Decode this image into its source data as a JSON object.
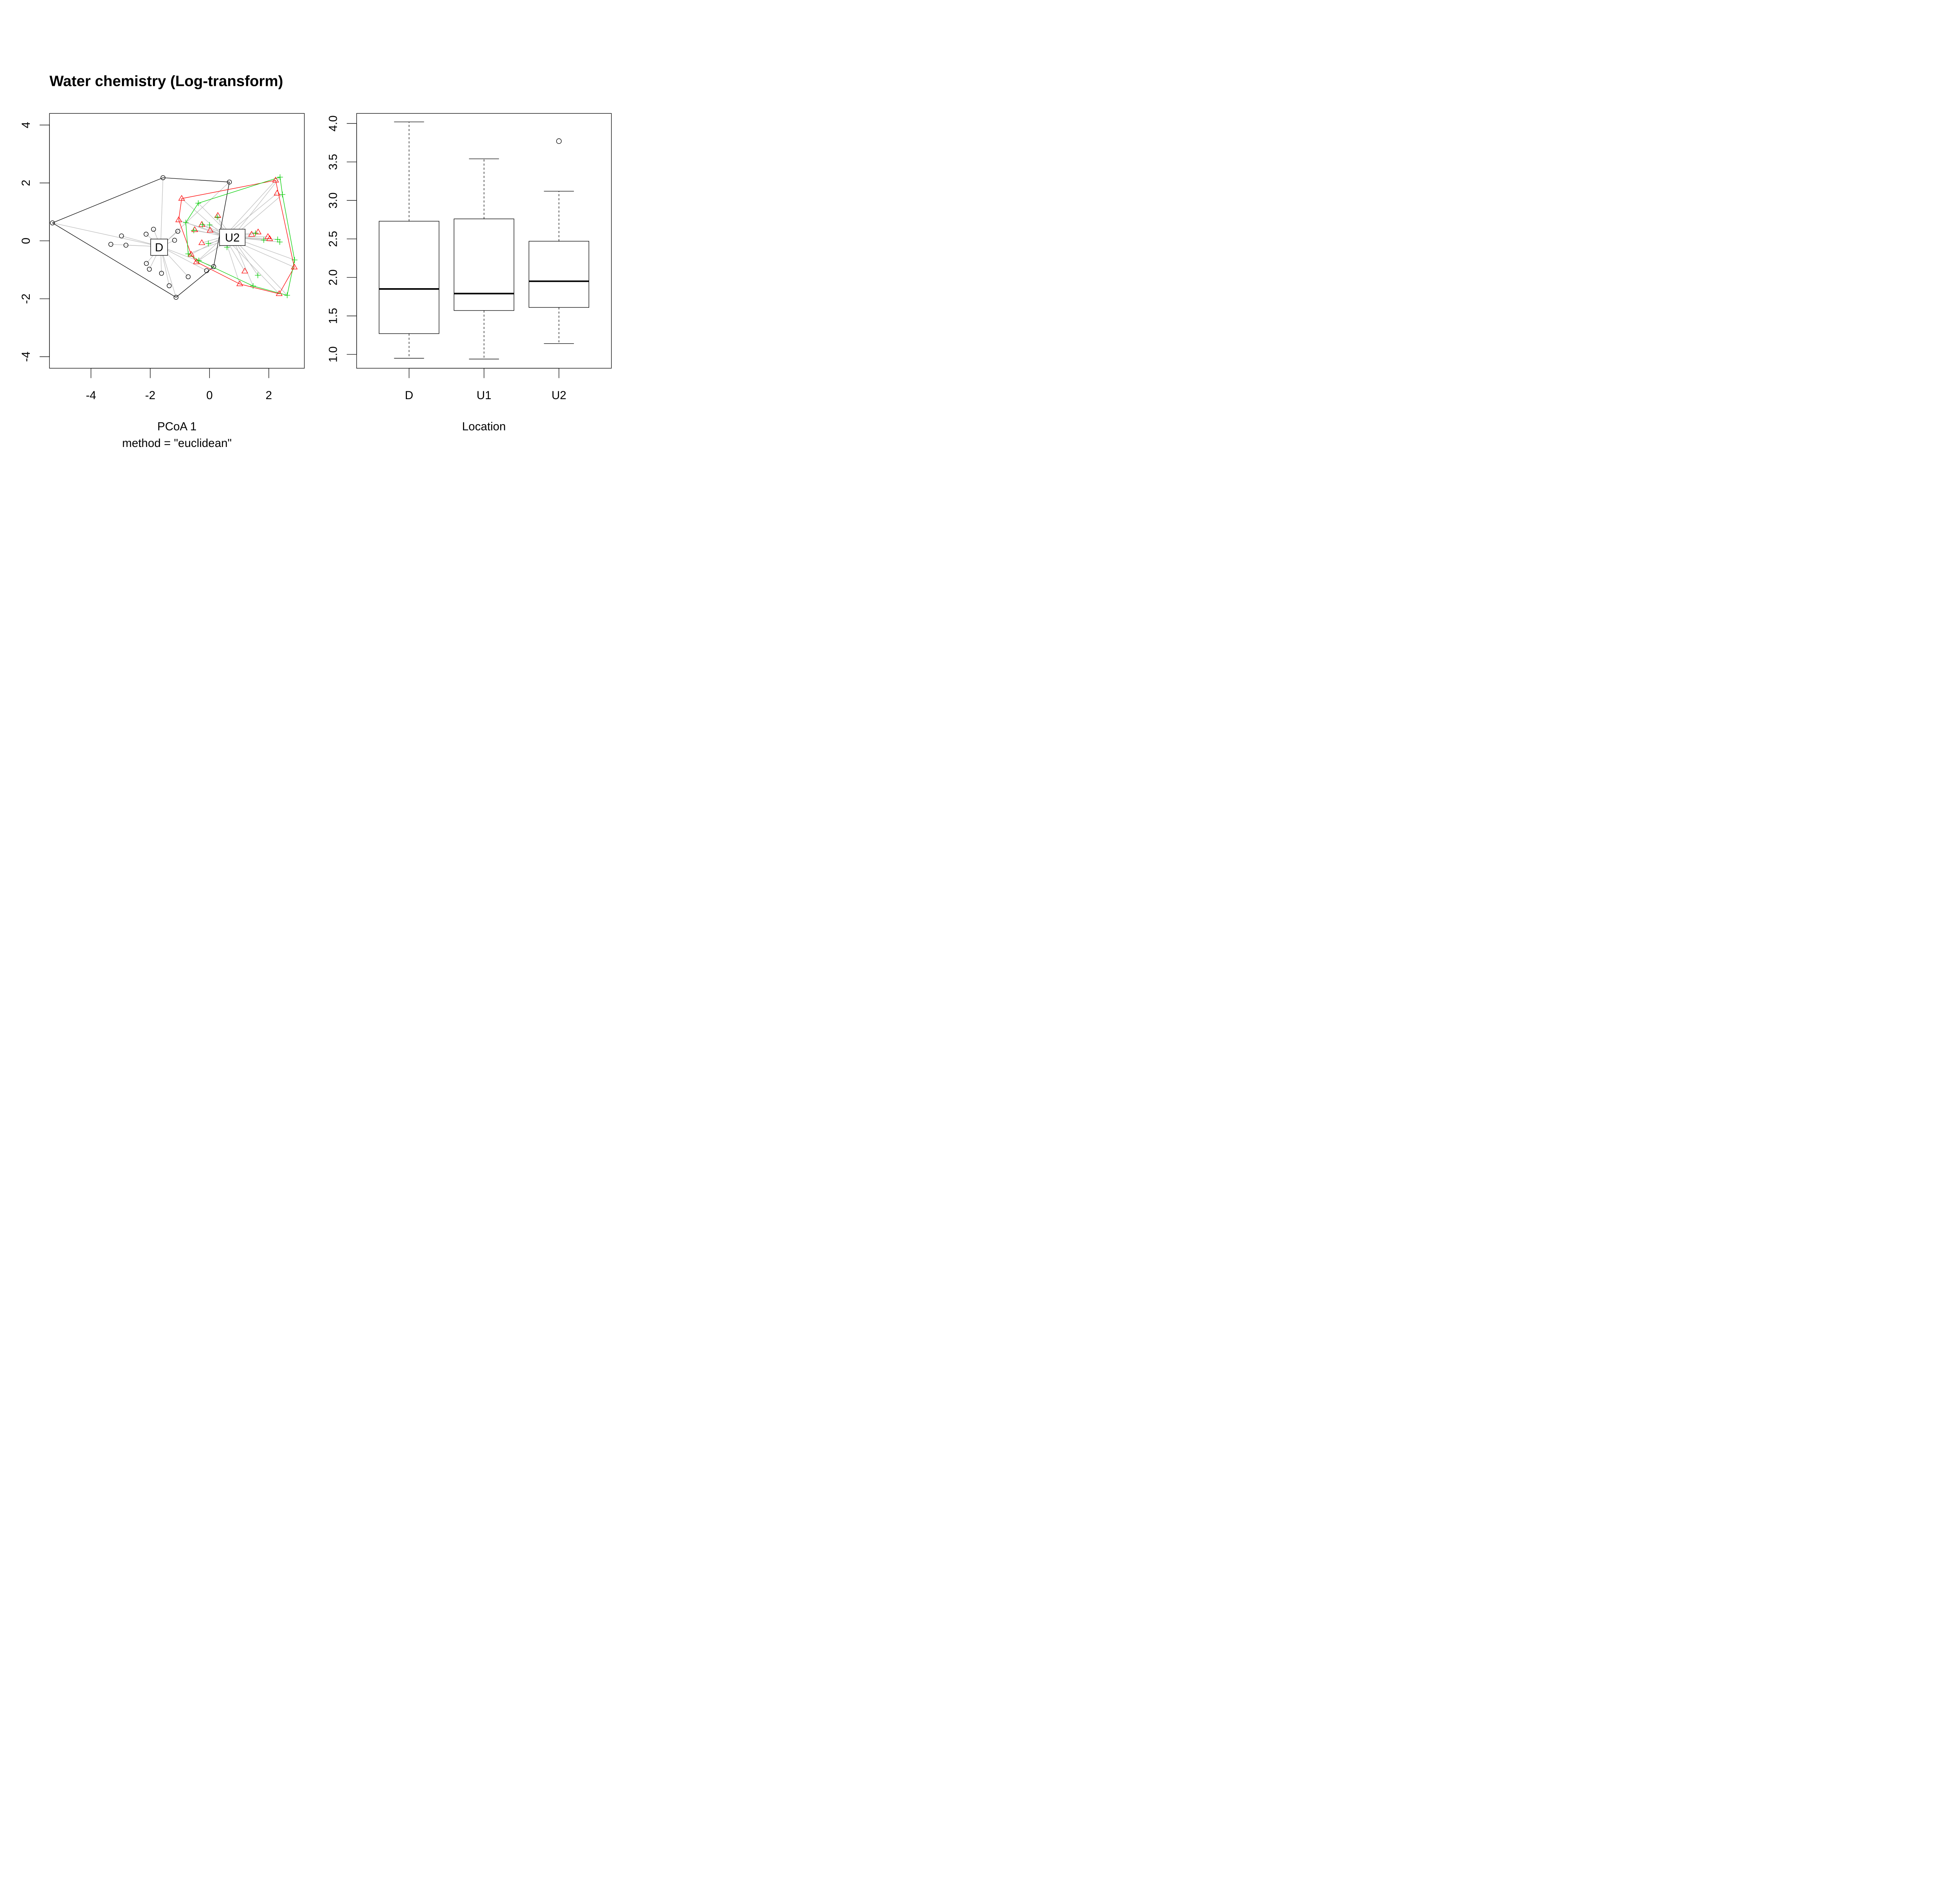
{
  "chart_data": [
    {
      "type": "scatter",
      "title": "Water chemistry (Log-transform)",
      "xlabel": "PCoA 1",
      "xlabel_sub": "method = \"euclidean\"",
      "ylabel": "",
      "xlim": [
        -5.4,
        3.2
      ],
      "ylim": [
        -4.4,
        4.4
      ],
      "xticks": [
        -4,
        -2,
        0,
        2
      ],
      "xtick_labels": [
        "-4",
        "-2",
        "0",
        "2"
      ],
      "yticks": [
        -4,
        -2,
        0,
        2,
        4
      ],
      "ytick_labels": [
        "-4",
        "-2",
        "0",
        "2",
        "4"
      ],
      "colors": {
        "D": "#000000",
        "U1": "#ff0000",
        "U2": "#00cd00",
        "spider": "#bebebe"
      },
      "centroid_labels": [
        "D",
        "U2"
      ],
      "groups": [
        {
          "name": "D",
          "marker": "circle",
          "color": "#000000",
          "centroid": [
            -1.65,
            -0.2
          ],
          "label_pos": [
            -1.7,
            -0.22
          ],
          "points": [
            [
              -5.3,
              0.62
            ],
            [
              -1.57,
              2.18
            ],
            [
              0.67,
              2.03
            ],
            [
              -1.13,
              -1.95
            ],
            [
              0.14,
              -0.89
            ],
            [
              -3.33,
              -0.12
            ],
            [
              -2.97,
              0.17
            ],
            [
              -2.82,
              -0.15
            ],
            [
              -2.14,
              0.23
            ],
            [
              -1.89,
              0.4
            ],
            [
              -2.13,
              -0.78
            ],
            [
              -2.03,
              -0.98
            ],
            [
              -1.62,
              -1.12
            ],
            [
              -1.36,
              -1.55
            ],
            [
              -1.18,
              0.02
            ],
            [
              -1.07,
              0.33
            ],
            [
              -0.72,
              -1.24
            ],
            [
              -0.1,
              -1.03
            ]
          ],
          "hull": [
            [
              -5.3,
              0.62
            ],
            [
              -1.57,
              2.18
            ],
            [
              0.67,
              2.03
            ],
            [
              0.14,
              -0.89
            ],
            [
              -1.13,
              -1.95
            ]
          ]
        },
        {
          "name": "U1",
          "marker": "triangle",
          "color": "#ff0000",
          "centroid": [
            0.5,
            0.15
          ],
          "points": [
            [
              -0.94,
              1.46
            ],
            [
              -1.04,
              0.72
            ],
            [
              -0.26,
              0.56
            ],
            [
              -0.5,
              0.38
            ],
            [
              0.28,
              0.87
            ],
            [
              0.02,
              0.36
            ],
            [
              -0.26,
              -0.07
            ],
            [
              -0.62,
              -0.47
            ],
            [
              -0.44,
              -0.73
            ],
            [
              1.02,
              -1.49
            ],
            [
              1.19,
              -1.05
            ],
            [
              1.42,
              0.22
            ],
            [
              1.64,
              0.3
            ],
            [
              1.97,
              0.14
            ],
            [
              2.03,
              0.07
            ],
            [
              2.23,
              2.09
            ],
            [
              2.28,
              1.64
            ],
            [
              2.35,
              -1.83
            ],
            [
              2.86,
              -0.91
            ]
          ],
          "hull": [
            [
              -0.94,
              1.46
            ],
            [
              2.23,
              2.09
            ],
            [
              2.86,
              -0.91
            ],
            [
              2.35,
              -1.83
            ],
            [
              1.02,
              -1.49
            ],
            [
              -0.44,
              -0.73
            ],
            [
              -0.62,
              -0.47
            ],
            [
              -1.04,
              0.72
            ]
          ]
        },
        {
          "name": "U2",
          "marker": "plus",
          "color": "#00cd00",
          "centroid": [
            0.77,
            0.12
          ],
          "label_pos": [
            0.77,
            0.12
          ],
          "points": [
            [
              -0.38,
              1.3
            ],
            [
              -0.8,
              0.63
            ],
            [
              -0.24,
              0.56
            ],
            [
              -0.53,
              0.36
            ],
            [
              0.0,
              0.55
            ],
            [
              0.26,
              0.82
            ],
            [
              -0.72,
              -0.45
            ],
            [
              -0.36,
              -0.68
            ],
            [
              -0.04,
              -0.09
            ],
            [
              0.59,
              -0.22
            ],
            [
              1.47,
              -1.56
            ],
            [
              1.63,
              -1.19
            ],
            [
              1.55,
              0.26
            ],
            [
              1.83,
              0.03
            ],
            [
              2.3,
              0.05
            ],
            [
              2.37,
              -0.04
            ],
            [
              2.38,
              2.2
            ],
            [
              2.46,
              1.6
            ],
            [
              2.62,
              -1.88
            ],
            [
              2.87,
              -0.66
            ]
          ],
          "hull": [
            [
              -0.38,
              1.3
            ],
            [
              2.38,
              2.2
            ],
            [
              2.46,
              1.6
            ],
            [
              2.87,
              -0.66
            ],
            [
              2.62,
              -1.88
            ],
            [
              1.47,
              -1.56
            ],
            [
              -0.36,
              -0.68
            ],
            [
              -0.72,
              -0.45
            ],
            [
              -0.8,
              0.63
            ]
          ]
        }
      ]
    },
    {
      "type": "box",
      "title": "",
      "xlabel": "Location",
      "ylabel": "",
      "ylim": [
        0.82,
        4.13
      ],
      "yticks": [
        1.0,
        1.5,
        2.0,
        2.5,
        3.0,
        3.5,
        4.0
      ],
      "ytick_labels": [
        "1.0",
        "1.5",
        "2.0",
        "2.5",
        "3.0",
        "3.5",
        "4.0"
      ],
      "categories": [
        "D",
        "U1",
        "U2"
      ],
      "boxes": [
        {
          "name": "D",
          "whisker_low": 0.95,
          "q1": 1.27,
          "median": 1.85,
          "q3": 2.73,
          "whisker_high": 4.02,
          "outliers": []
        },
        {
          "name": "U1",
          "whisker_low": 0.94,
          "q1": 1.57,
          "median": 1.79,
          "q3": 2.76,
          "whisker_high": 3.54,
          "outliers": []
        },
        {
          "name": "U2",
          "whisker_low": 1.14,
          "q1": 1.61,
          "median": 1.95,
          "q3": 2.47,
          "whisker_high": 3.12,
          "outliers": [
            3.77
          ]
        }
      ]
    }
  ]
}
